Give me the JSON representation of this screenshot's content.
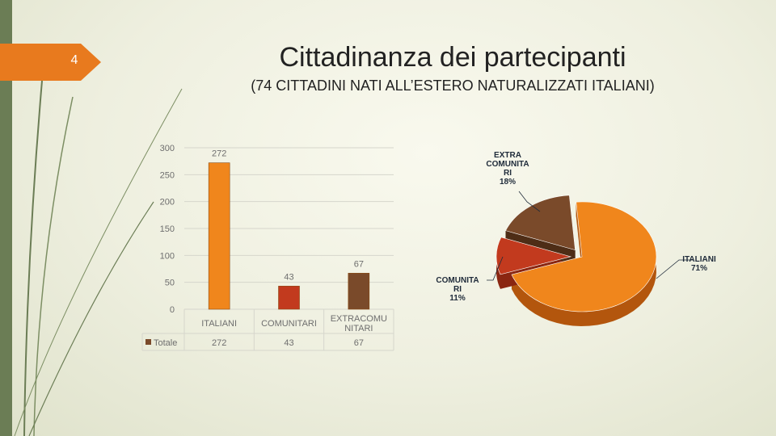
{
  "slide": {
    "page_number": "4",
    "title": "Cittadinanza dei partecipanti",
    "subtitle": "(74 CITTADINI NATI ALL’ESTERO NATURALIZZATI ITALIANI)"
  },
  "colors": {
    "accent": "#e87a1e",
    "sidebar": "#6b7d55",
    "italiani": "#f0861c",
    "comunitari": "#c23a1e",
    "extracomunitari": "#7a4a2a"
  },
  "chart_data": [
    {
      "type": "bar",
      "categories": [
        "ITALIANI",
        "COMUNITARI",
        "EXTRACOMUNITARI"
      ],
      "category_labels": [
        [
          "ITALIANI"
        ],
        [
          "COMUNITARI"
        ],
        [
          "EXTRACOMU",
          "NITARI"
        ]
      ],
      "series": [
        {
          "name": "Totale",
          "values": [
            272,
            43,
            67
          ]
        }
      ],
      "ylim": [
        0,
        300
      ],
      "yticks": [
        0,
        50,
        100,
        150,
        200,
        250,
        300
      ],
      "data_table": true,
      "grid": true
    },
    {
      "type": "pie",
      "categories": [
        "ITALIANI",
        "COMUNITARI",
        "EXTRACOMUNITARI"
      ],
      "values": [
        71,
        11,
        18
      ],
      "labels": [
        [
          "ITALIANI",
          "71%"
        ],
        [
          "COMUNITA",
          "RI",
          "11%"
        ],
        [
          "EXTRA",
          "COMUNITA",
          "RI",
          "18%"
        ]
      ],
      "style": "3d",
      "exploded": true
    }
  ]
}
